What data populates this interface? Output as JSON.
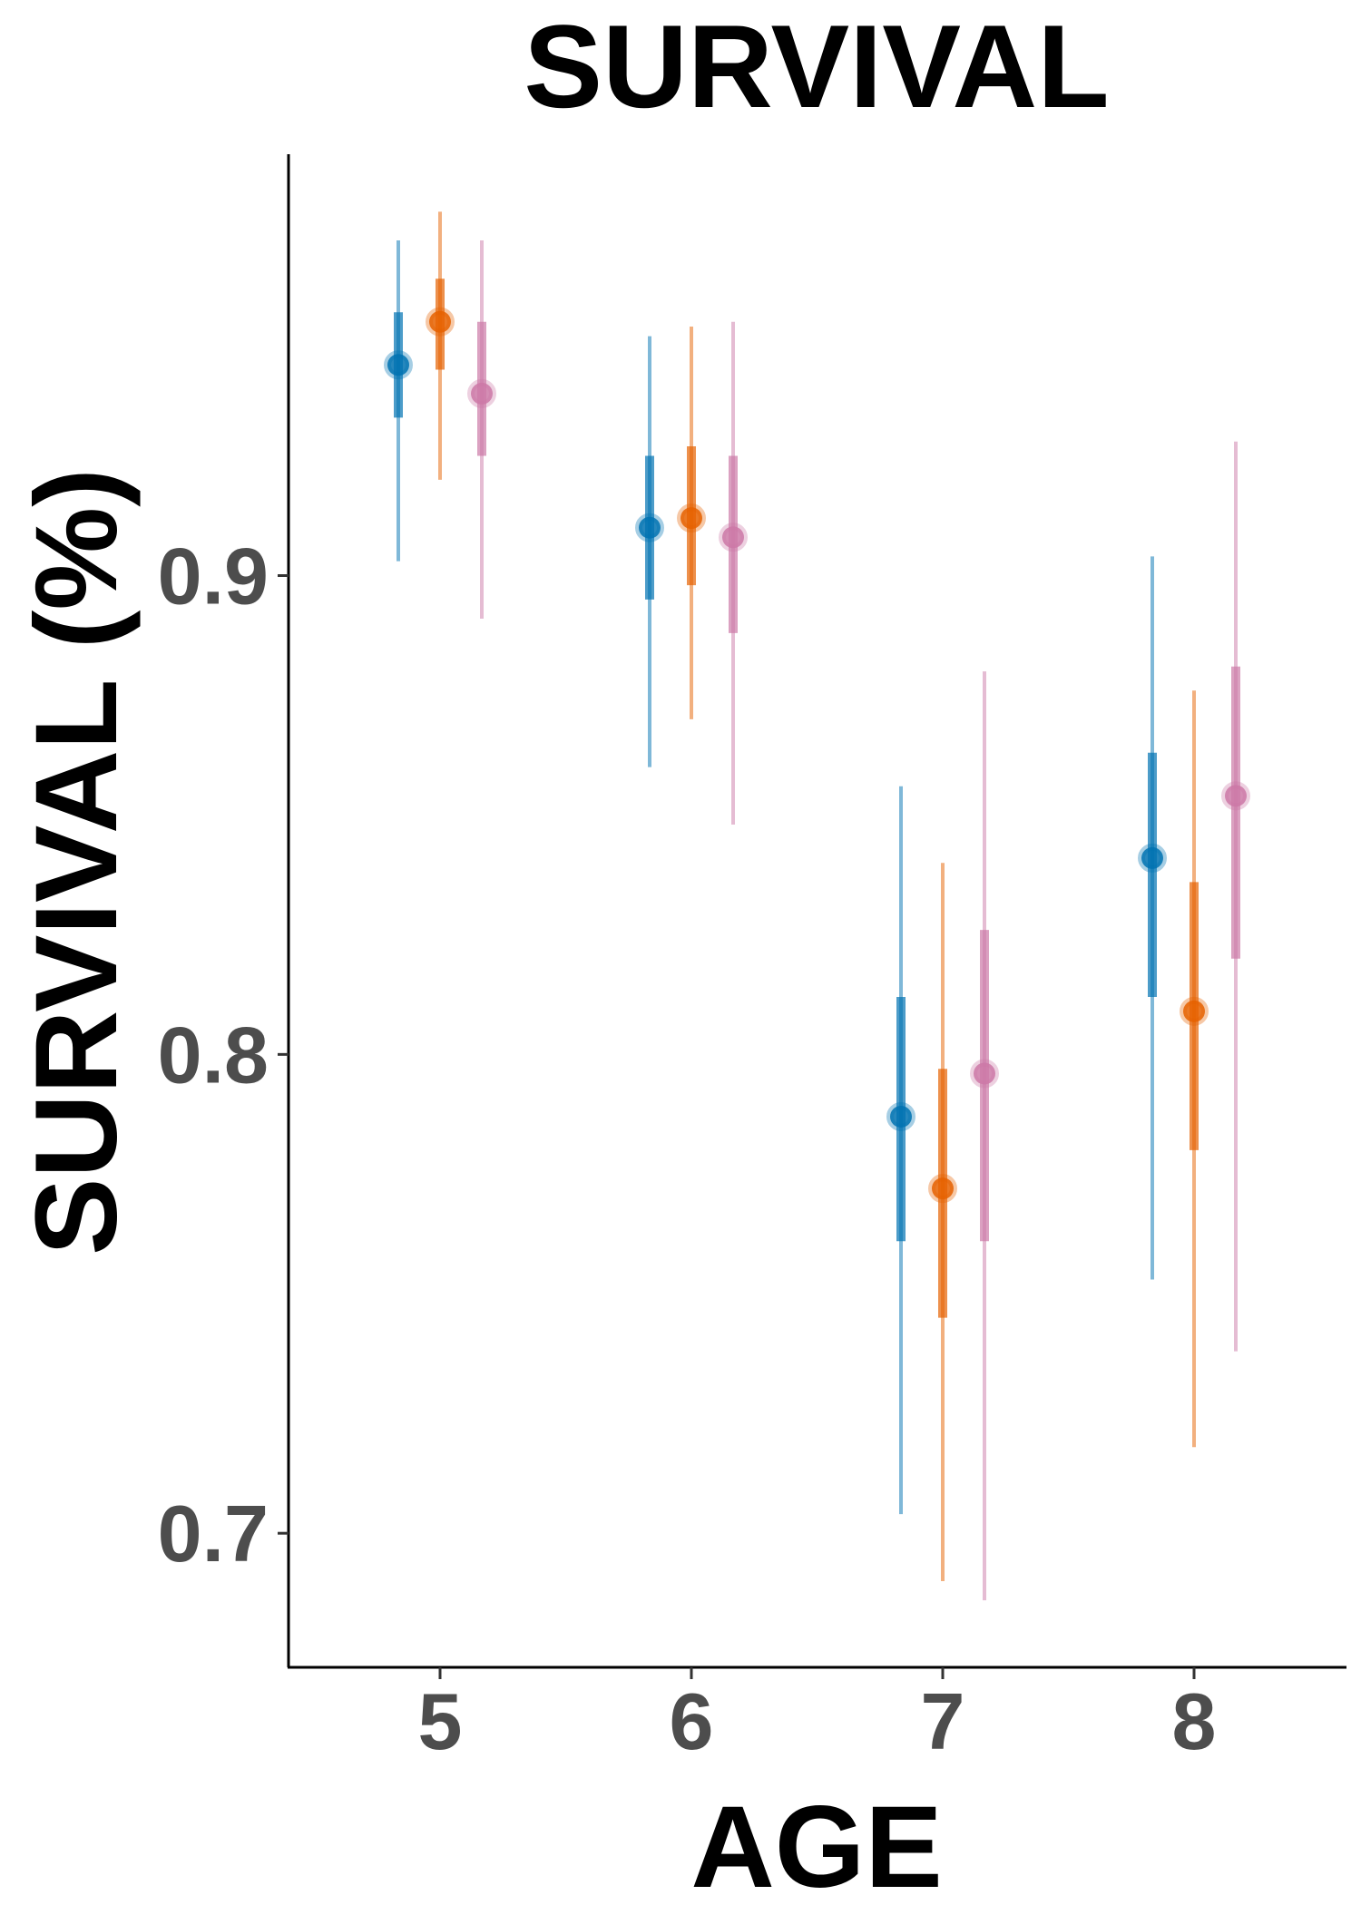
{
  "chart_data": {
    "type": "scatter",
    "title": "SURVIVAL",
    "xlabel": "AGE",
    "ylabel": "SURVIVAL (%)",
    "categories": [
      "5",
      "6",
      "7",
      "8"
    ],
    "yticks": [
      "0.7",
      "0.8",
      "0.9"
    ],
    "ylim": [
      0.672,
      0.988
    ],
    "grid": false,
    "legend": "none",
    "series": [
      {
        "color": "#0072B2",
        "values": [
          0.944,
          0.91,
          0.787,
          0.841
        ],
        "inner_interval": [
          [
            0.933,
            0.955
          ],
          [
            0.895,
            0.925
          ],
          [
            0.761,
            0.812
          ],
          [
            0.812,
            0.863
          ]
        ],
        "outer_interval": [
          [
            0.903,
            0.97
          ],
          [
            0.86,
            0.95
          ],
          [
            0.704,
            0.856
          ],
          [
            0.753,
            0.904
          ]
        ]
      },
      {
        "color": "#E66100",
        "values": [
          0.953,
          0.912,
          0.772,
          0.809
        ],
        "inner_interval": [
          [
            0.943,
            0.962
          ],
          [
            0.898,
            0.927
          ],
          [
            0.745,
            0.797
          ],
          [
            0.78,
            0.836
          ]
        ],
        "outer_interval": [
          [
            0.92,
            0.976
          ],
          [
            0.87,
            0.952
          ],
          [
            0.69,
            0.84
          ],
          [
            0.718,
            0.876
          ]
        ]
      },
      {
        "color": "#CC79A7",
        "values": [
          0.938,
          0.908,
          0.796,
          0.854
        ],
        "inner_interval": [
          [
            0.925,
            0.953
          ],
          [
            0.888,
            0.925
          ],
          [
            0.761,
            0.826
          ],
          [
            0.82,
            0.881
          ]
        ],
        "outer_interval": [
          [
            0.891,
            0.97
          ],
          [
            0.848,
            0.953
          ],
          [
            0.686,
            0.88
          ],
          [
            0.738,
            0.928
          ]
        ]
      }
    ]
  }
}
